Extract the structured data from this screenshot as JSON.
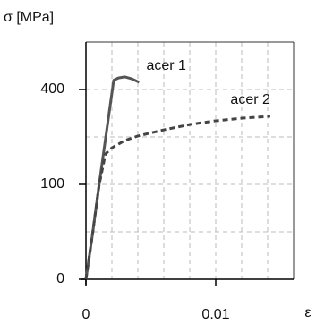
{
  "chart_data": {
    "type": "line",
    "y_label": "σ [MPa]",
    "x_label": "ε",
    "xlim": [
      0,
      0.016
    ],
    "xticks": [
      0,
      0.01
    ],
    "xgrid": [
      0.002,
      0.004,
      0.006,
      0.008,
      0.01,
      0.012,
      0.014
    ],
    "ylim": [
      0,
      625
    ],
    "yscale": "sqrt",
    "yticks": [
      0,
      100,
      400
    ],
    "ygrid": [
      25,
      100,
      225,
      400
    ],
    "grid": true,
    "series": [
      {
        "name": "acer 1",
        "color": "#555555",
        "style": "solid",
        "x": [
          0,
          0.0005,
          0.001,
          0.0015,
          0.002,
          0.00214,
          0.0025,
          0.003,
          0.0035,
          0.0041
        ],
        "values": [
          0,
          22,
          96,
          217,
          385,
          440,
          450,
          455,
          447,
          431
        ]
      },
      {
        "name": "acer 2",
        "color": "#444444",
        "style": "dashed",
        "x": [
          0,
          0.0005,
          0.001,
          0.0015,
          0.002,
          0.003,
          0.004,
          0.006,
          0.008,
          0.01,
          0.012,
          0.0142
        ],
        "values": [
          0,
          22,
          96,
          174,
          192,
          214,
          228,
          248,
          266,
          279,
          288,
          295
        ]
      }
    ]
  }
}
